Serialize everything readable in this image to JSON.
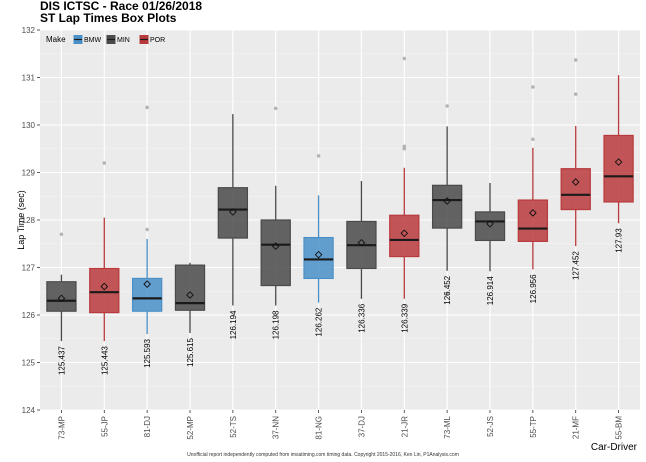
{
  "title": "DIS ICTSC - Race 01/26/2018",
  "subtitle": "ST Lap Times Box Plots",
  "footnote": "Unofficial report independently computed from imsatiming.com timing data. Copyright 2015-2016, Ken Lin, P1Analysis.com",
  "colors": {
    "BMW": "#4a90c8",
    "MIN": "#4a4a4a",
    "POR": "#b83a3c",
    "panel": "#ebebeb",
    "grid": "#ffffff"
  },
  "chart_data": {
    "type": "box",
    "xlabel": "Car-Driver",
    "ylabel": "Lap Time (sec)",
    "ylim": [
      124,
      132
    ],
    "yticks": [
      124,
      125,
      126,
      127,
      128,
      129,
      130,
      131,
      132
    ],
    "legend": {
      "title": "Make",
      "placement": "top-left",
      "entries": [
        "BMW",
        "MIN",
        "POR"
      ]
    },
    "categories": [
      "73-MP",
      "55-JP",
      "81-DJ",
      "52-MP",
      "52-TS",
      "37-NN",
      "81-NG",
      "37-DJ",
      "21-JR",
      "73-ML",
      "52-JS",
      "55-TP",
      "21-MF",
      "55-BM"
    ],
    "boxes": [
      {
        "car": "73-MP",
        "make": "MIN",
        "whisker_low": 125.45,
        "q1": 126.08,
        "median": 126.3,
        "q3": 126.7,
        "whisker_high": 126.85,
        "mean": 126.35,
        "outliers": [
          127.7
        ],
        "min_label": "125.437"
      },
      {
        "car": "55-JP",
        "make": "POR",
        "whisker_low": 125.45,
        "q1": 126.05,
        "median": 126.48,
        "q3": 126.98,
        "whisker_high": 128.05,
        "mean": 126.6,
        "outliers": [
          129.2
        ],
        "min_label": "125.443"
      },
      {
        "car": "81-DJ",
        "make": "BMW",
        "whisker_low": 125.6,
        "q1": 126.08,
        "median": 126.35,
        "q3": 126.77,
        "whisker_high": 127.6,
        "mean": 126.65,
        "outliers": [
          127.8,
          130.37
        ],
        "min_label": "125.593"
      },
      {
        "car": "52-MP",
        "make": "MIN",
        "whisker_low": 125.62,
        "q1": 126.1,
        "median": 126.25,
        "q3": 127.05,
        "whisker_high": 127.1,
        "mean": 126.42,
        "outliers": [],
        "min_label": "125.615"
      },
      {
        "car": "52-TS",
        "make": "MIN",
        "whisker_low": 126.2,
        "q1": 127.62,
        "median": 128.22,
        "q3": 128.68,
        "whisker_high": 130.23,
        "mean": 128.17,
        "outliers": [],
        "min_label": "126.194"
      },
      {
        "car": "37-NN",
        "make": "MIN",
        "whisker_low": 126.2,
        "q1": 126.62,
        "median": 127.48,
        "q3": 128.0,
        "whisker_high": 128.72,
        "mean": 127.45,
        "outliers": [
          130.35
        ],
        "min_label": "126.198"
      },
      {
        "car": "81-NG",
        "make": "BMW",
        "whisker_low": 126.26,
        "q1": 126.77,
        "median": 127.17,
        "q3": 127.63,
        "whisker_high": 128.52,
        "mean": 127.27,
        "outliers": [
          129.35
        ],
        "min_label": "126.262"
      },
      {
        "car": "37-DJ",
        "make": "MIN",
        "whisker_low": 126.34,
        "q1": 126.98,
        "median": 127.47,
        "q3": 127.97,
        "whisker_high": 128.82,
        "mean": 127.52,
        "outliers": [],
        "min_label": "126.336"
      },
      {
        "car": "21-JR",
        "make": "POR",
        "whisker_low": 126.34,
        "q1": 127.23,
        "median": 127.58,
        "q3": 128.1,
        "whisker_high": 129.1,
        "mean": 127.72,
        "outliers": [
          129.5,
          129.55,
          131.4
        ],
        "min_label": "126.339"
      },
      {
        "car": "73-ML",
        "make": "MIN",
        "whisker_low": 126.93,
        "q1": 127.83,
        "median": 128.42,
        "q3": 128.73,
        "whisker_high": 129.97,
        "mean": 128.4,
        "outliers": [
          126.452,
          130.4
        ],
        "min_label": "126.452"
      },
      {
        "car": "52-JS",
        "make": "MIN",
        "whisker_low": 126.92,
        "q1": 127.57,
        "median": 127.97,
        "q3": 128.17,
        "whisker_high": 128.78,
        "mean": 127.92,
        "outliers": [],
        "min_label": "126.914"
      },
      {
        "car": "55-TP",
        "make": "POR",
        "whisker_low": 126.96,
        "q1": 127.55,
        "median": 127.82,
        "q3": 128.42,
        "whisker_high": 129.52,
        "mean": 128.15,
        "outliers": [
          129.7,
          130.8
        ],
        "min_label": "126.956"
      },
      {
        "car": "21-MF",
        "make": "POR",
        "whisker_low": 127.45,
        "q1": 128.22,
        "median": 128.53,
        "q3": 129.08,
        "whisker_high": 129.98,
        "mean": 128.8,
        "outliers": [
          130.65,
          131.37
        ],
        "min_label": "127.452"
      },
      {
        "car": "55-BM",
        "make": "POR",
        "whisker_low": 127.93,
        "q1": 128.38,
        "median": 128.92,
        "q3": 129.78,
        "whisker_high": 131.05,
        "mean": 129.22,
        "outliers": [],
        "min_label": "127.93"
      }
    ]
  }
}
